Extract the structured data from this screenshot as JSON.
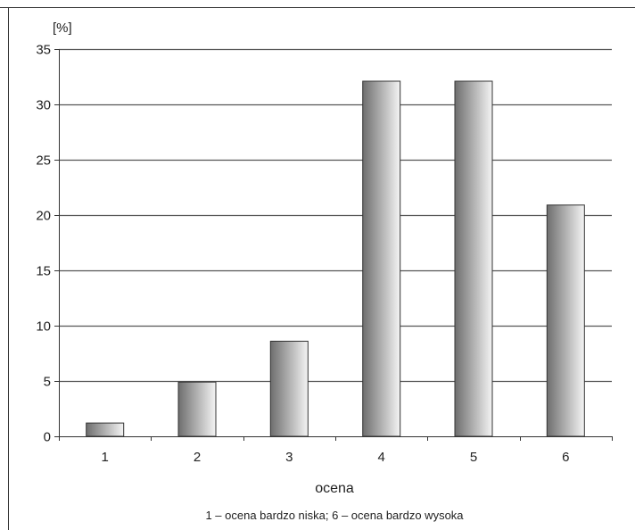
{
  "chart_data": {
    "type": "bar",
    "categories": [
      "1",
      "2",
      "3",
      "4",
      "5",
      "6"
    ],
    "values": [
      1.2,
      4.9,
      8.6,
      32.1,
      32.1,
      20.9
    ],
    "ylabel": "[%]",
    "xlabel": "ocena",
    "note": "1 – ocena bardzo niska; 6 – ocena bardzo wysoka",
    "ylim": [
      0,
      35
    ],
    "yticks": [
      0,
      5,
      10,
      15,
      20,
      25,
      30,
      35
    ],
    "grid": true,
    "legend": "none",
    "colors": {
      "gridline": "#555555",
      "axis": "#333333",
      "bar_outline": "#333333",
      "bar_dark": "#6e6e6e",
      "bar_light": "#f4f4f4"
    }
  }
}
